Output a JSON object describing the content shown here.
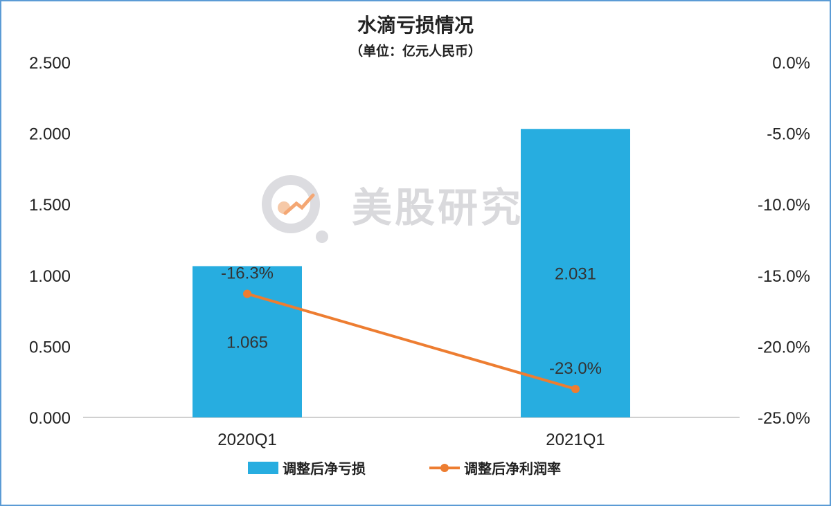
{
  "watermark": {
    "text": "美股研究社",
    "icon": "growth-chart-logo-icon"
  },
  "chart_data": {
    "type": "bar+line",
    "title": "水滴亏损情况",
    "subtitle": "（单位：亿元人民币）",
    "categories": [
      "2020Q1",
      "2021Q1"
    ],
    "series": [
      {
        "name": "调整后净亏损",
        "type": "bar",
        "axis": "left",
        "values": [
          1.065,
          2.031
        ],
        "labels": [
          "1.065",
          "2.031"
        ],
        "color": "#27ade0"
      },
      {
        "name": "调整后净利润率",
        "type": "line",
        "axis": "right",
        "values": [
          -16.3,
          -23.0
        ],
        "labels": [
          "-16.3%",
          "-23.0%"
        ],
        "color": "#ed7d31"
      }
    ],
    "y_left": {
      "min": 0,
      "max": 2.5,
      "step": 0.5,
      "ticks": [
        "0.000",
        "0.500",
        "1.000",
        "1.500",
        "2.000",
        "2.500"
      ]
    },
    "y_right": {
      "min": -25,
      "max": 0,
      "step": 5,
      "ticks": [
        "-25.0%",
        "-20.0%",
        "-15.0%",
        "-10.0%",
        "-5.0%",
        "0.0%"
      ]
    },
    "grid": false,
    "legend_position": "bottom"
  }
}
